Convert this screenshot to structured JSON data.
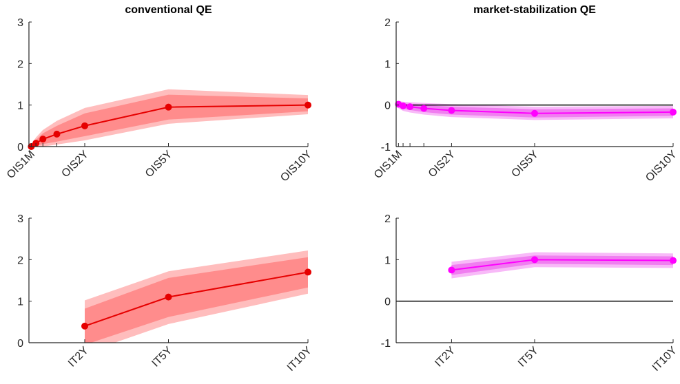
{
  "chart_data": [
    {
      "type": "line",
      "title": "conventional QE",
      "x": [
        0.083,
        0.25,
        0.5,
        1,
        2,
        5,
        10
      ],
      "values": [
        0,
        0.08,
        0.18,
        0.3,
        0.5,
        0.95,
        1.0
      ],
      "color": "#e60000",
      "bands": [
        {
          "color": "#ffbdbd",
          "lower": [
            -0.03,
            -0.02,
            0.0,
            0.05,
            0.15,
            0.55,
            0.78
          ],
          "upper": [
            0.05,
            0.22,
            0.4,
            0.62,
            0.93,
            1.38,
            1.24
          ]
        },
        {
          "color": "#ff8c8c",
          "lower": [
            -0.02,
            0.02,
            0.06,
            0.12,
            0.25,
            0.65,
            0.85
          ],
          "upper": [
            0.03,
            0.16,
            0.32,
            0.5,
            0.8,
            1.25,
            1.16
          ]
        }
      ],
      "xlim": [
        0,
        10
      ],
      "ylim": [
        0,
        3
      ],
      "yticks": [
        0,
        1,
        2,
        3
      ],
      "xticks": [
        {
          "value": 0.083,
          "label": "OIS1M"
        },
        {
          "value": 0.25,
          "label": null
        },
        {
          "value": 0.5,
          "label": null
        },
        {
          "value": 1,
          "label": null
        },
        {
          "value": 2,
          "label": "OIS2Y"
        },
        {
          "value": 5,
          "label": "OIS5Y"
        },
        {
          "value": 10,
          "label": "OIS10Y"
        }
      ],
      "zero_line": false
    },
    {
      "type": "line",
      "title": "market-stabilization QE",
      "x": [
        0.083,
        0.25,
        0.5,
        1,
        2,
        5,
        10
      ],
      "values": [
        0.02,
        -0.02,
        -0.04,
        -0.08,
        -0.13,
        -0.2,
        -0.17
      ],
      "color": "#ff00ff",
      "bands": [
        {
          "color": "#f8baf8",
          "lower": [
            -0.08,
            -0.14,
            -0.18,
            -0.23,
            -0.29,
            -0.36,
            -0.32
          ],
          "upper": [
            0.1,
            0.08,
            0.07,
            0.05,
            0.02,
            -0.04,
            -0.02
          ]
        },
        {
          "color": "#f07ef0",
          "lower": [
            -0.04,
            -0.09,
            -0.12,
            -0.17,
            -0.23,
            -0.3,
            -0.26
          ],
          "upper": [
            0.07,
            0.04,
            0.03,
            0.0,
            -0.04,
            -0.1,
            -0.08
          ]
        }
      ],
      "xlim": [
        0,
        10
      ],
      "ylim": [
        -1,
        2
      ],
      "yticks": [
        -1,
        0,
        1,
        2
      ],
      "xticks": [
        {
          "value": 0.083,
          "label": "OIS1M"
        },
        {
          "value": 0.25,
          "label": null
        },
        {
          "value": 0.5,
          "label": null
        },
        {
          "value": 1,
          "label": null
        },
        {
          "value": 2,
          "label": "OIS2Y"
        },
        {
          "value": 5,
          "label": "OIS5Y"
        },
        {
          "value": 10,
          "label": "OIS10Y"
        }
      ],
      "zero_line": true
    },
    {
      "type": "line",
      "x": [
        2,
        5,
        10
      ],
      "values": [
        0.4,
        1.1,
        1.7
      ],
      "color": "#e60000",
      "bands": [
        {
          "color": "#ffbdbd",
          "lower": [
            -0.25,
            0.45,
            1.18
          ],
          "upper": [
            1.02,
            1.72,
            2.22
          ]
        },
        {
          "color": "#ff8c8c",
          "lower": [
            -0.05,
            0.62,
            1.33
          ],
          "upper": [
            0.82,
            1.56,
            2.06
          ]
        }
      ],
      "xlim": [
        0,
        10
      ],
      "ylim": [
        0,
        3
      ],
      "yticks": [
        0,
        1,
        2,
        3
      ],
      "xticks": [
        {
          "value": 2,
          "label": "IT2Y"
        },
        {
          "value": 5,
          "label": "IT5Y"
        },
        {
          "value": 10,
          "label": "IT10Y"
        }
      ],
      "zero_line": false
    },
    {
      "type": "line",
      "x": [
        2,
        5,
        10
      ],
      "values": [
        0.75,
        1.0,
        0.98
      ],
      "color": "#ff00ff",
      "bands": [
        {
          "color": "#f8baf8",
          "lower": [
            0.55,
            0.82,
            0.8
          ],
          "upper": [
            0.95,
            1.18,
            1.15
          ]
        },
        {
          "color": "#f07ef0",
          "lower": [
            0.63,
            0.9,
            0.87
          ],
          "upper": [
            0.87,
            1.1,
            1.08
          ]
        }
      ],
      "xlim": [
        0,
        10
      ],
      "ylim": [
        -1,
        2
      ],
      "yticks": [
        -1,
        0,
        1,
        2
      ],
      "xticks": [
        {
          "value": 2,
          "label": "IT2Y"
        },
        {
          "value": 5,
          "label": "IT5Y"
        },
        {
          "value": 10,
          "label": "IT10Y"
        }
      ],
      "zero_line": true
    }
  ]
}
